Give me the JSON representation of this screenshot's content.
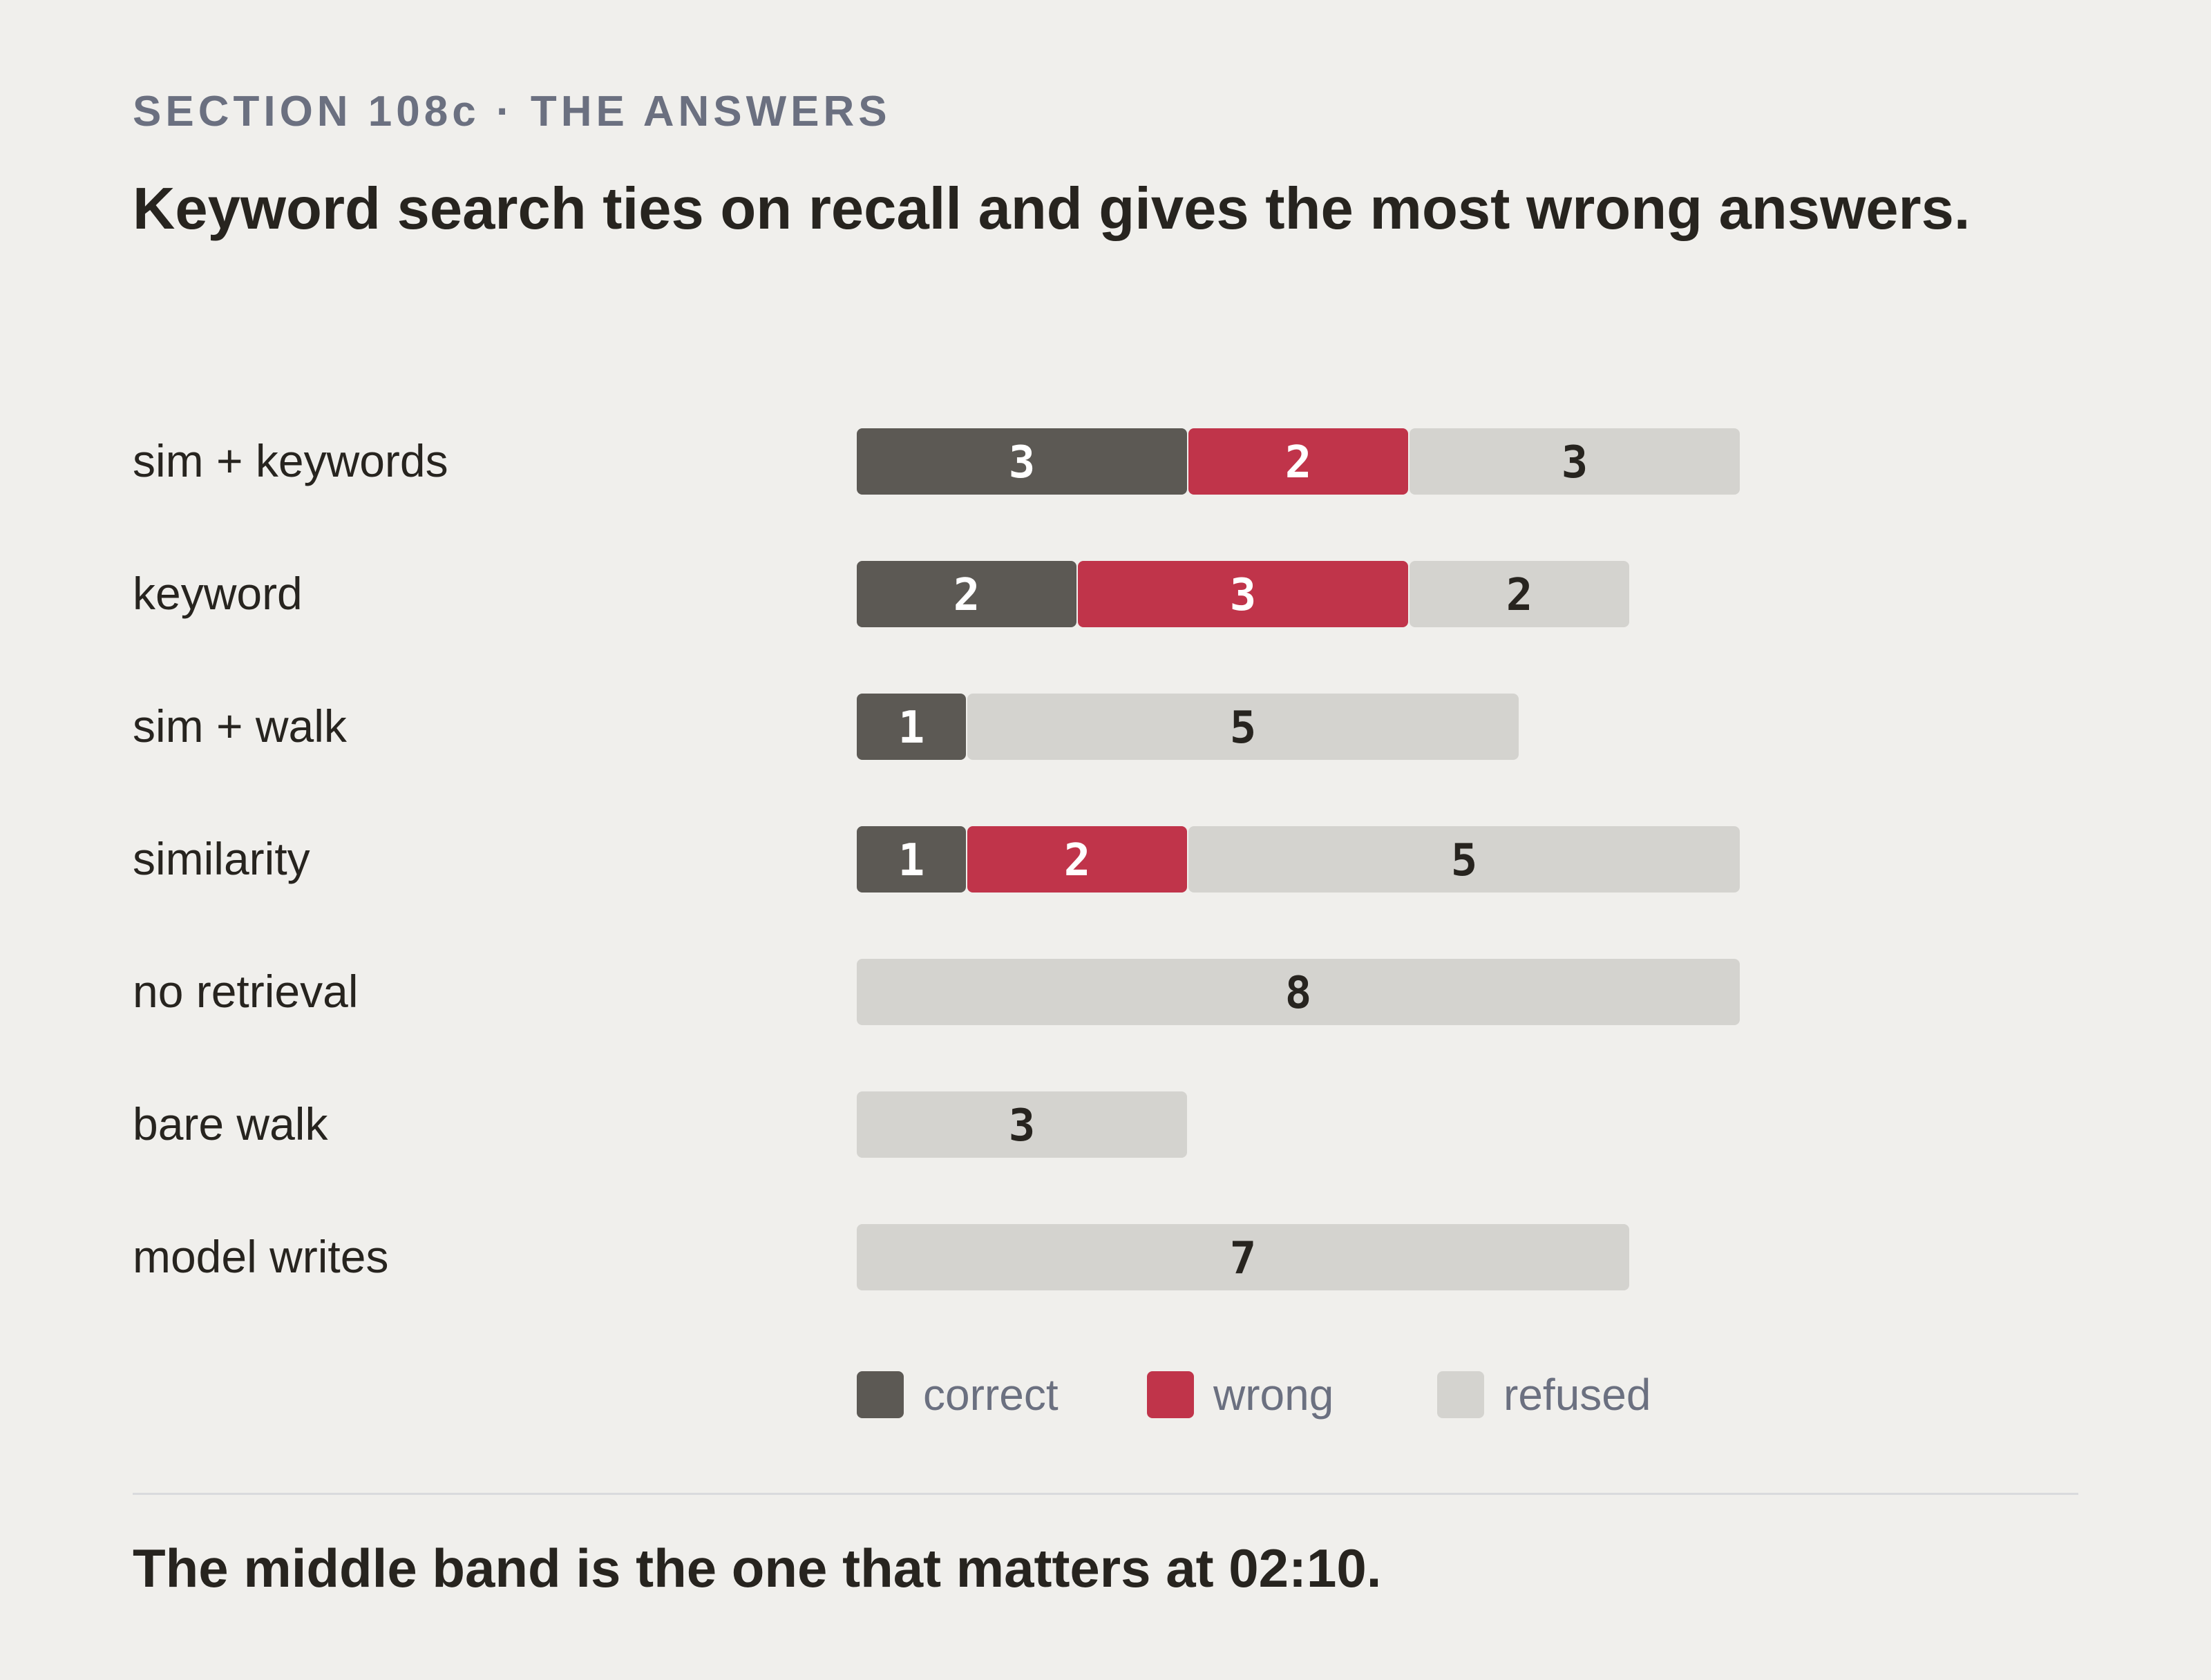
{
  "kicker": "SECTION 108c · THE ANSWERS",
  "title": "Keyword search ties on recall and gives the most wrong answers.",
  "footer": "The middle band is the one that matters at 02:10.",
  "colors": {
    "background": "#f0efec",
    "correct": "#5c5954",
    "wrong": "#c0344a",
    "refused": "#d4d3cf",
    "label_text": "#27241f",
    "legend_text": "#6b7080"
  },
  "chart_data": {
    "type": "bar",
    "orientation": "horizontal",
    "stacked": true,
    "categories": [
      "sim + keywords",
      "keyword",
      "sim + walk",
      "similarity",
      "no retrieval",
      "bare walk",
      "model writes"
    ],
    "series": [
      {
        "name": "correct",
        "values": [
          3,
          2,
          1,
          1,
          0,
          0,
          0
        ]
      },
      {
        "name": "wrong",
        "values": [
          2,
          3,
          0,
          2,
          0,
          0,
          0
        ]
      },
      {
        "name": "refused",
        "values": [
          3,
          2,
          5,
          5,
          8,
          3,
          7
        ]
      }
    ],
    "data_labels": true,
    "xlabel": "",
    "ylabel": "",
    "grid": false,
    "legend_position": "bottom"
  }
}
